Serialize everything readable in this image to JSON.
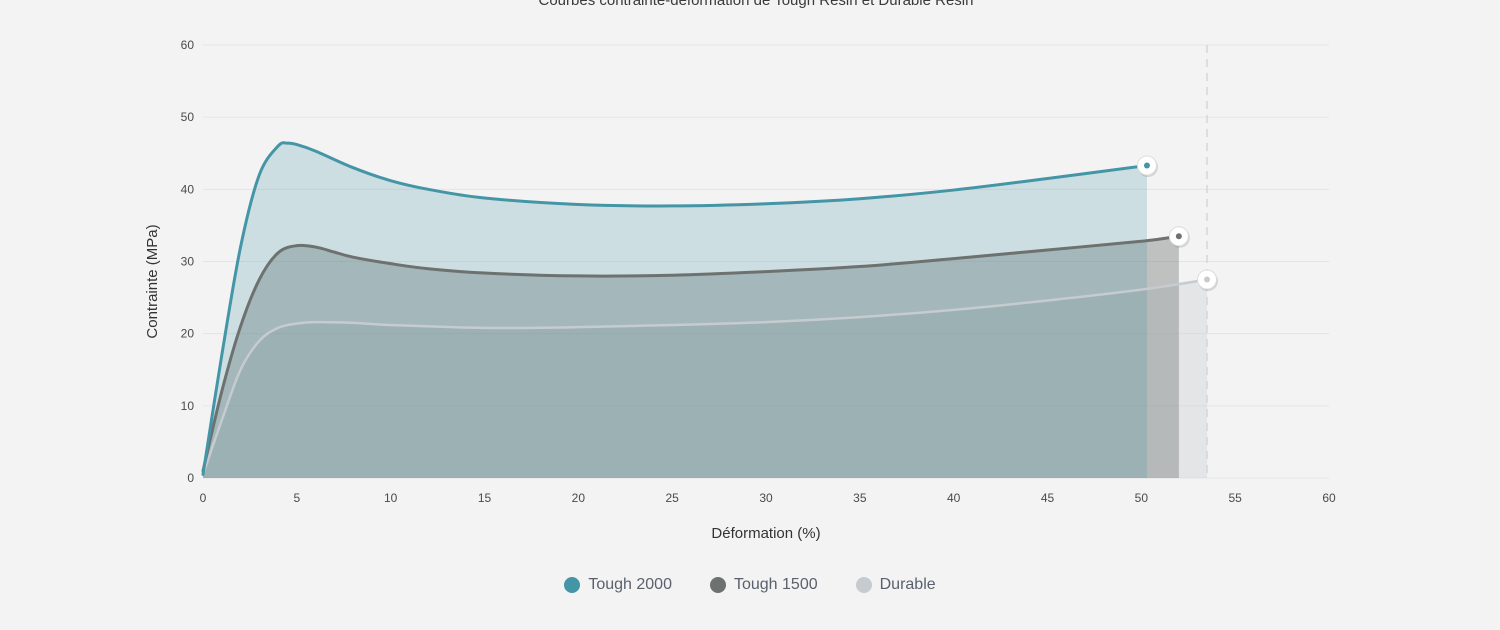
{
  "chart_data": {
    "type": "area",
    "title": "Courbes contrainte-déformation de Tough Resin et Durable Resin",
    "xlabel": "Déformation (%)",
    "ylabel": "Contrainte (MPa)",
    "xlim": [
      0,
      60
    ],
    "ylim": [
      0,
      60
    ],
    "xticks": [
      0,
      5,
      10,
      15,
      20,
      25,
      30,
      35,
      40,
      45,
      50,
      55,
      60
    ],
    "yticks": [
      0,
      10,
      20,
      30,
      40,
      50,
      60
    ],
    "grid": true,
    "legend_position": "bottom",
    "reference_line_x": 53.5,
    "series": [
      {
        "name": "Durable",
        "color": "#c6cbd0",
        "points": [
          [
            0,
            0.5
          ],
          [
            1,
            8
          ],
          [
            2,
            15
          ],
          [
            3,
            19
          ],
          [
            4,
            20.8
          ],
          [
            5,
            21.4
          ],
          [
            6,
            21.6
          ],
          [
            8,
            21.5
          ],
          [
            10,
            21.2
          ],
          [
            15,
            20.8
          ],
          [
            20,
            20.9
          ],
          [
            25,
            21.2
          ],
          [
            30,
            21.6
          ],
          [
            35,
            22.3
          ],
          [
            40,
            23.3
          ],
          [
            45,
            24.6
          ],
          [
            50,
            26.1
          ],
          [
            53.5,
            27.5
          ]
        ]
      },
      {
        "name": "Tough 1500",
        "color": "#6d716f",
        "points": [
          [
            0,
            1
          ],
          [
            1,
            12
          ],
          [
            2,
            21
          ],
          [
            3,
            27.5
          ],
          [
            4,
            31.2
          ],
          [
            5,
            32.2
          ],
          [
            6,
            32
          ],
          [
            7,
            31.3
          ],
          [
            8,
            30.6
          ],
          [
            10,
            29.7
          ],
          [
            12,
            29
          ],
          [
            15,
            28.4
          ],
          [
            20,
            28
          ],
          [
            25,
            28.1
          ],
          [
            30,
            28.6
          ],
          [
            35,
            29.3
          ],
          [
            40,
            30.4
          ],
          [
            45,
            31.6
          ],
          [
            50,
            32.8
          ],
          [
            52,
            33.5
          ]
        ]
      },
      {
        "name": "Tough 2000",
        "color": "#4495a6",
        "points": [
          [
            0,
            0.5
          ],
          [
            1,
            17
          ],
          [
            2,
            32
          ],
          [
            3,
            42
          ],
          [
            4,
            46
          ],
          [
            4.5,
            46.4
          ],
          [
            5,
            46.2
          ],
          [
            6,
            45.3
          ],
          [
            8,
            43
          ],
          [
            10,
            41.2
          ],
          [
            12,
            40
          ],
          [
            15,
            38.8
          ],
          [
            20,
            37.9
          ],
          [
            25,
            37.7
          ],
          [
            30,
            38
          ],
          [
            35,
            38.7
          ],
          [
            40,
            39.9
          ],
          [
            45,
            41.5
          ],
          [
            50.3,
            43.3
          ]
        ]
      }
    ]
  },
  "legend": [
    {
      "name": "Tough 2000",
      "color": "#4495a6"
    },
    {
      "name": "Tough 1500",
      "color": "#6d716f"
    },
    {
      "name": "Durable",
      "color": "#c6cbd0"
    }
  ]
}
